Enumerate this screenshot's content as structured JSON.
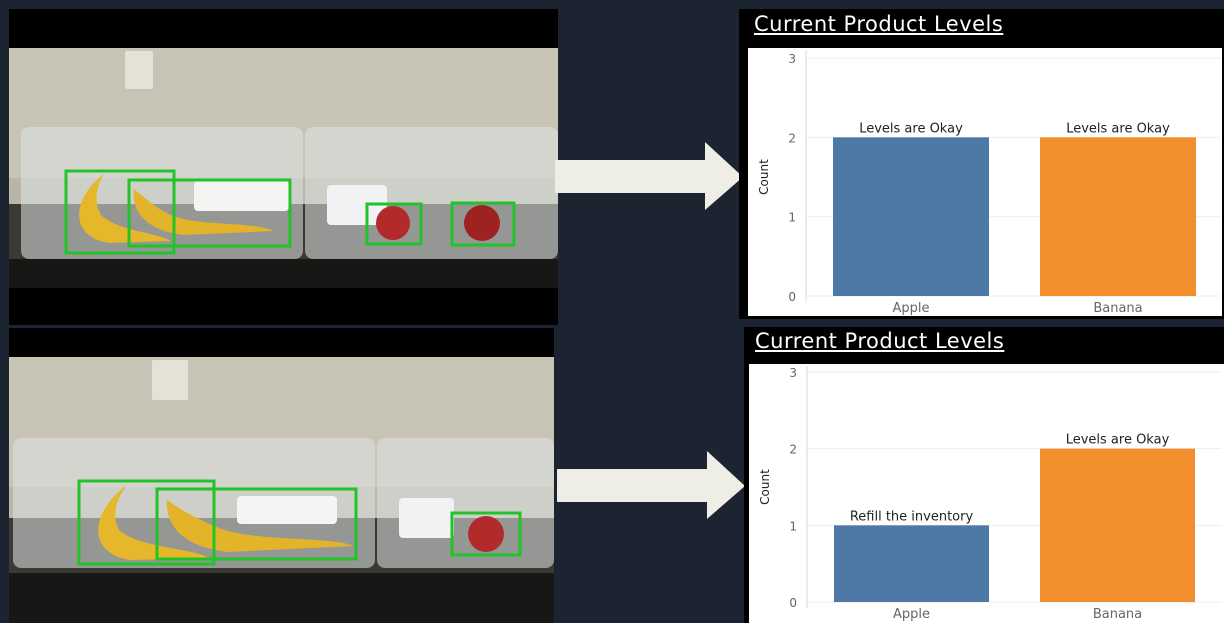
{
  "colors": {
    "apple": "#4e79a7",
    "banana": "#f28e2b",
    "box": "#22c328",
    "arrow": "#eeede6"
  },
  "scenes": [
    {
      "id": "top",
      "detections": [
        "banana",
        "banana",
        "apple",
        "apple"
      ]
    },
    {
      "id": "bottom",
      "detections": [
        "banana",
        "banana",
        "apple"
      ]
    }
  ],
  "chart_data": [
    {
      "type": "bar",
      "title": "Current Product Levels",
      "categories": [
        "Apple",
        "Banana"
      ],
      "values": [
        2,
        2
      ],
      "labels": [
        "Levels are Okay",
        "Levels are Okay"
      ],
      "xlabel": "",
      "ylabel": "Count",
      "ylim": [
        0,
        3
      ],
      "yticks": [
        0,
        1,
        2,
        3
      ],
      "colors": [
        "#4e79a7",
        "#f28e2b"
      ],
      "grid": true
    },
    {
      "type": "bar",
      "title": "Current Product Levels",
      "categories": [
        "Apple",
        "Banana"
      ],
      "values": [
        1,
        2
      ],
      "labels": [
        "Refill the inventory",
        "Levels are Okay"
      ],
      "xlabel": "",
      "ylabel": "Count",
      "ylim": [
        0,
        3
      ],
      "yticks": [
        0,
        1,
        2,
        3
      ],
      "colors": [
        "#4e79a7",
        "#f28e2b"
      ],
      "grid": true
    }
  ]
}
